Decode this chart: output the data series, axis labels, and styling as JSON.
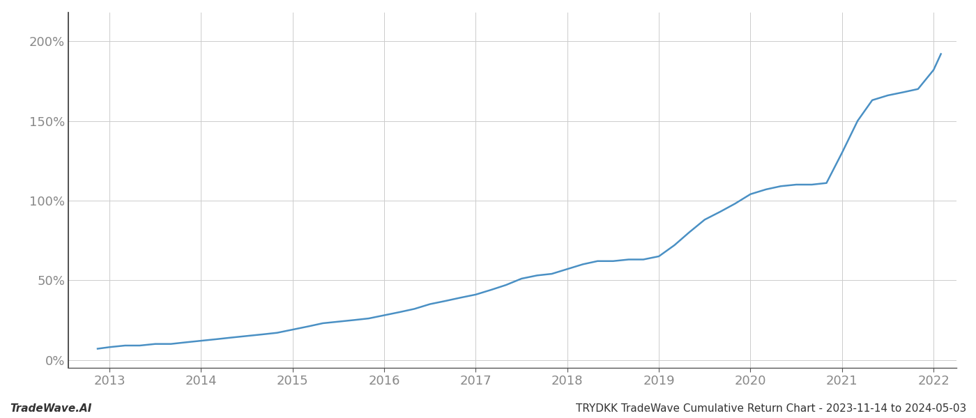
{
  "title": "TRYDKK TradeWave Cumulative Return Chart - 2023-11-14 to 2024-05-03",
  "footer_left": "TradeWave.AI",
  "line_color": "#4a90c4",
  "background_color": "#ffffff",
  "grid_color": "#cccccc",
  "x_years": [
    2013,
    2014,
    2015,
    2016,
    2017,
    2018,
    2019,
    2020,
    2021,
    2022
  ],
  "x_data": [
    2012.87,
    2013.0,
    2013.17,
    2013.33,
    2013.5,
    2013.67,
    2013.83,
    2014.0,
    2014.17,
    2014.33,
    2014.5,
    2014.67,
    2014.83,
    2015.0,
    2015.17,
    2015.33,
    2015.5,
    2015.67,
    2015.83,
    2016.0,
    2016.17,
    2016.33,
    2016.5,
    2016.67,
    2016.83,
    2017.0,
    2017.17,
    2017.33,
    2017.5,
    2017.67,
    2017.83,
    2018.0,
    2018.17,
    2018.33,
    2018.5,
    2018.67,
    2018.83,
    2019.0,
    2019.17,
    2019.33,
    2019.5,
    2019.67,
    2019.83,
    2020.0,
    2020.17,
    2020.33,
    2020.5,
    2020.67,
    2020.83,
    2021.0,
    2021.17,
    2021.33,
    2021.5,
    2021.67,
    2021.83,
    2022.0,
    2022.08
  ],
  "y_data": [
    0.07,
    0.08,
    0.09,
    0.09,
    0.1,
    0.1,
    0.11,
    0.12,
    0.13,
    0.14,
    0.15,
    0.16,
    0.17,
    0.19,
    0.21,
    0.23,
    0.24,
    0.25,
    0.26,
    0.28,
    0.3,
    0.32,
    0.35,
    0.37,
    0.39,
    0.41,
    0.44,
    0.47,
    0.51,
    0.53,
    0.54,
    0.57,
    0.6,
    0.62,
    0.62,
    0.63,
    0.63,
    0.65,
    0.72,
    0.8,
    0.88,
    0.93,
    0.98,
    1.04,
    1.07,
    1.09,
    1.1,
    1.1,
    1.11,
    1.3,
    1.5,
    1.63,
    1.66,
    1.68,
    1.7,
    1.82,
    1.92
  ],
  "ylim": [
    -0.05,
    2.18
  ],
  "xlim": [
    2012.55,
    2022.25
  ],
  "yticks": [
    0.0,
    0.5,
    1.0,
    1.5,
    2.0
  ],
  "ytick_labels": [
    "0%",
    "50%",
    "100%",
    "150%",
    "200%"
  ],
  "line_width": 1.8,
  "tick_fontsize": 13,
  "footer_fontsize": 11,
  "axis_color": "#555555",
  "tick_color": "#888888",
  "left_spine_color": "#333333"
}
